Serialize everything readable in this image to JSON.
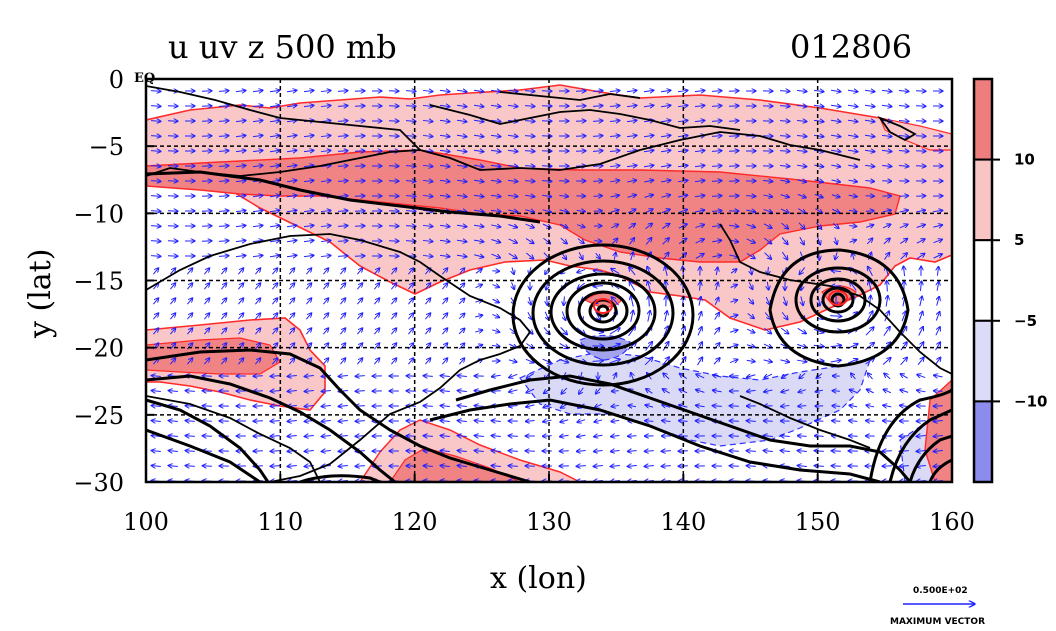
{
  "chart_data": {
    "type": "heatmap",
    "title": "u uv z 500 mb",
    "date": "012806",
    "xlabel": "x (lon)",
    "ylabel": "y (lat)",
    "xlim": [
      100,
      160
    ],
    "ylim": [
      -30,
      0
    ],
    "x_ticks": [
      100,
      110,
      120,
      130,
      140,
      150,
      160
    ],
    "x_tick_labels": [
      "100",
      "110",
      "120",
      "130",
      "140",
      "150",
      "160"
    ],
    "y_ticks": [
      0,
      -5,
      -10,
      -15,
      -20,
      -25,
      -30
    ],
    "y_tick_labels": [
      "0",
      "−5",
      "−10",
      "−15",
      "−20",
      "−25",
      "−30"
    ],
    "equator_label": "EQ",
    "grid": true,
    "colorbar": {
      "levels": [
        -15,
        -10,
        -5,
        5,
        10,
        15
      ],
      "tick_values": [
        10,
        5,
        -5,
        -10
      ],
      "tick_labels": [
        "10",
        "5",
        "−5",
        "−10"
      ],
      "colors": [
        "#8c8cee",
        "#dcdcf8",
        "#ffffff",
        "#f8c4c4",
        "#ee7e7e"
      ]
    },
    "shading_colors": {
      "light_red": "#f9c7c7",
      "red": "#f08484",
      "light_blue": "#dadaf7",
      "blue": "#a4a4ee"
    },
    "contour_color": "#000000",
    "u_contour_color": "#ff0000",
    "vector_color": "#0000ff",
    "vectors": {
      "reference_label": "0.500E+02",
      "caption": "MAXIMUM VECTOR"
    },
    "lows": [
      {
        "lon": 134.3,
        "lat": -17.5
      },
      {
        "lon": 151.7,
        "lat": -16.6
      }
    ]
  }
}
